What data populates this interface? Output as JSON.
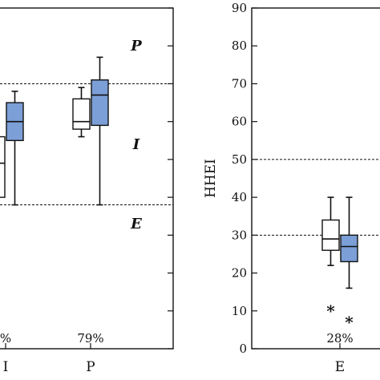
{
  "colors": {
    "axis": "#111111",
    "box_white": "#ffffff",
    "box_blue": "#7b9fd6",
    "box_stroke": "#111111"
  },
  "chart_data": [
    {
      "type": "box",
      "partial": "left panel, cropped at the left edge",
      "categories": [
        "I",
        "P"
      ],
      "ylim": [
        0,
        90
      ],
      "yticks": [
        0,
        10,
        20,
        30,
        40,
        50,
        60,
        70,
        80,
        90
      ],
      "threshold_lines": [
        38,
        70
      ],
      "zone_labels": [
        {
          "text": "P",
          "y": 80
        },
        {
          "text": "I",
          "y": 54
        },
        {
          "text": "E",
          "y": 33
        }
      ],
      "series": [
        {
          "style": "white",
          "boxes": [
            {
              "category": "I",
              "min": 38,
              "q1": 40,
              "median": 49,
              "q3": 56,
              "max": 66
            },
            {
              "category": "P",
              "min": 56,
              "q1": 58,
              "median": 60,
              "q3": 66,
              "max": 69
            }
          ]
        },
        {
          "style": "blue",
          "boxes": [
            {
              "category": "I",
              "min": 38,
              "q1": 55,
              "median": 60,
              "q3": 65,
              "max": 68
            },
            {
              "category": "P",
              "min": 38,
              "q1": 59,
              "median": 67,
              "q3": 71,
              "max": 77
            }
          ]
        }
      ],
      "percent_labels": [
        {
          "category": "I",
          "text": "%"
        },
        {
          "category": "P",
          "text": "79%"
        }
      ]
    },
    {
      "type": "box",
      "ylabel": "HHEI",
      "categories": [
        "E"
      ],
      "ylim": [
        0,
        90
      ],
      "yticks": [
        0,
        10,
        20,
        30,
        40,
        50,
        60,
        70,
        80,
        90
      ],
      "threshold_lines": [
        30,
        50
      ],
      "series": [
        {
          "style": "white",
          "boxes": [
            {
              "category": "E",
              "min": 22,
              "q1": 26,
              "median": 29,
              "q3": 34,
              "max": 40,
              "outliers": [
                11
              ]
            }
          ]
        },
        {
          "style": "blue",
          "boxes": [
            {
              "category": "E",
              "min": 16,
              "q1": 23,
              "median": 27,
              "q3": 30,
              "max": 40,
              "outliers": [
                8
              ]
            }
          ]
        }
      ],
      "percent_labels": [
        {
          "category": "E",
          "text": "28%"
        }
      ]
    }
  ]
}
